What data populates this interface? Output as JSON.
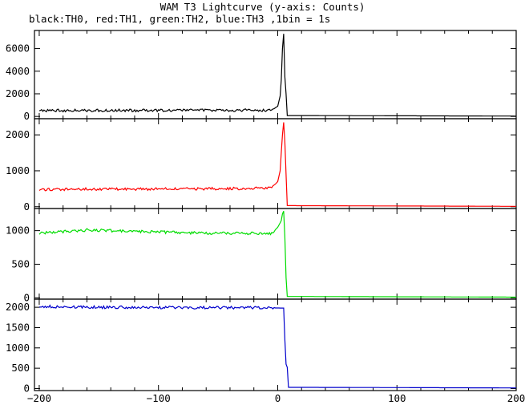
{
  "chart_data": {
    "type": "line",
    "title": "WAM T3 Lightcurve (y-axis: Counts)",
    "subtitle": "black:TH0, red:TH1, green:TH2, blue:TH3 ,1bin = 1s",
    "xlim": [
      -204,
      200
    ],
    "x_ticks": [
      "−200",
      "−100",
      "0",
      "100",
      "200"
    ],
    "x_tick_values": [
      -200,
      -100,
      0,
      100,
      200
    ],
    "grid": false,
    "panels": [
      {
        "name": "TH0",
        "color": "#000000",
        "ylim": [
          -200,
          7600
        ],
        "y_ticks": [
          "0",
          "2000",
          "4000",
          "6000"
        ],
        "y_tick_values": [
          0,
          2000,
          4000,
          6000
        ],
        "points": [
          [
            -200,
            520
          ],
          [
            -150,
            525
          ],
          [
            -100,
            535
          ],
          [
            -50,
            540
          ],
          [
            -5,
            560
          ],
          [
            0,
            900
          ],
          [
            2,
            1800
          ],
          [
            3,
            3200
          ],
          [
            4,
            6000
          ],
          [
            5,
            7300
          ],
          [
            6,
            3500
          ],
          [
            7,
            2000
          ],
          [
            8,
            80
          ],
          [
            200,
            30
          ]
        ]
      },
      {
        "name": "TH1",
        "color": "#ff0000",
        "ylim": [
          -50,
          2450
        ],
        "y_ticks": [
          "0",
          "1000",
          "2000"
        ],
        "y_tick_values": [
          0,
          1000,
          2000
        ],
        "points": [
          [
            -200,
            480
          ],
          [
            -150,
            490
          ],
          [
            -100,
            495
          ],
          [
            -50,
            500
          ],
          [
            -5,
            520
          ],
          [
            0,
            700
          ],
          [
            2,
            1000
          ],
          [
            3,
            1500
          ],
          [
            4,
            2000
          ],
          [
            5,
            2350
          ],
          [
            6,
            1800
          ],
          [
            7,
            900
          ],
          [
            8,
            30
          ],
          [
            200,
            10
          ]
        ]
      },
      {
        "name": "TH2",
        "color": "#00dd00",
        "ylim": [
          -20,
          1330
        ],
        "y_ticks": [
          "0",
          "500",
          "1000"
        ],
        "y_tick_values": [
          0,
          500,
          1000
        ],
        "points": [
          [
            -200,
            960
          ],
          [
            -160,
            1010
          ],
          [
            -120,
            990
          ],
          [
            -80,
            970
          ],
          [
            -40,
            960
          ],
          [
            -5,
            960
          ],
          [
            0,
            1050
          ],
          [
            3,
            1150
          ],
          [
            4,
            1250
          ],
          [
            5,
            1290
          ],
          [
            6,
            900
          ],
          [
            7,
            300
          ],
          [
            8,
            20
          ],
          [
            200,
            10
          ]
        ]
      },
      {
        "name": "TH3",
        "color": "#0000cc",
        "ylim": [
          -50,
          2200
        ],
        "y_ticks": [
          "0",
          "500",
          "1000",
          "1500",
          "2000"
        ],
        "y_tick_values": [
          0,
          500,
          1000,
          1500,
          2000
        ],
        "points": [
          [
            -200,
            2020
          ],
          [
            -150,
            2000
          ],
          [
            -100,
            1995
          ],
          [
            -50,
            1990
          ],
          [
            -5,
            1985
          ],
          [
            5,
            1980
          ],
          [
            6,
            1200
          ],
          [
            7,
            600
          ],
          [
            8,
            520
          ],
          [
            9,
            30
          ],
          [
            200,
            15
          ]
        ]
      }
    ]
  }
}
